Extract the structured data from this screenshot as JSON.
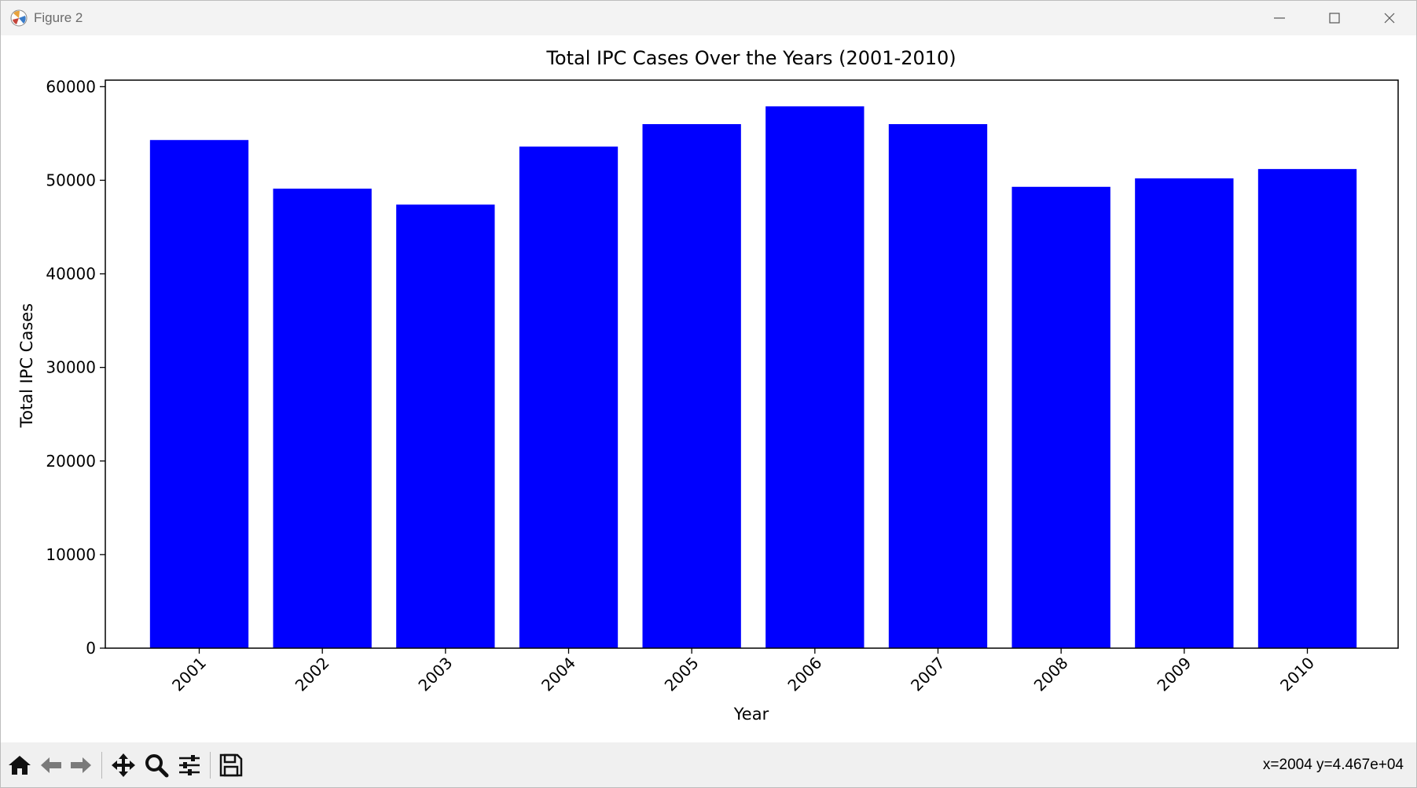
{
  "window": {
    "title": "Figure 2",
    "controls": [
      "minimize-icon",
      "maximize-icon",
      "close-icon"
    ]
  },
  "toolbar": {
    "buttons": [
      "home-icon",
      "back-icon",
      "forward-icon",
      "pan-icon",
      "zoom-icon",
      "configure-subplots-icon",
      "save-icon"
    ],
    "coords_text": "x=2004 y=4.467e+04"
  },
  "chart_data": {
    "type": "bar",
    "title": "Total IPC Cases Over the Years (2001-2010)",
    "xlabel": "Year",
    "ylabel": "Total IPC Cases",
    "categories": [
      "2001",
      "2002",
      "2003",
      "2004",
      "2005",
      "2006",
      "2007",
      "2008",
      "2009",
      "2010"
    ],
    "values": [
      54300,
      49100,
      47400,
      53600,
      56000,
      57900,
      56000,
      49300,
      50200,
      51200
    ],
    "ylim": [
      0,
      60700
    ],
    "yticks": [
      0,
      10000,
      20000,
      30000,
      40000,
      50000,
      60000
    ],
    "bar_color": "#0000ff",
    "xtick_rotation": 45,
    "grid": false,
    "legend": "none"
  }
}
